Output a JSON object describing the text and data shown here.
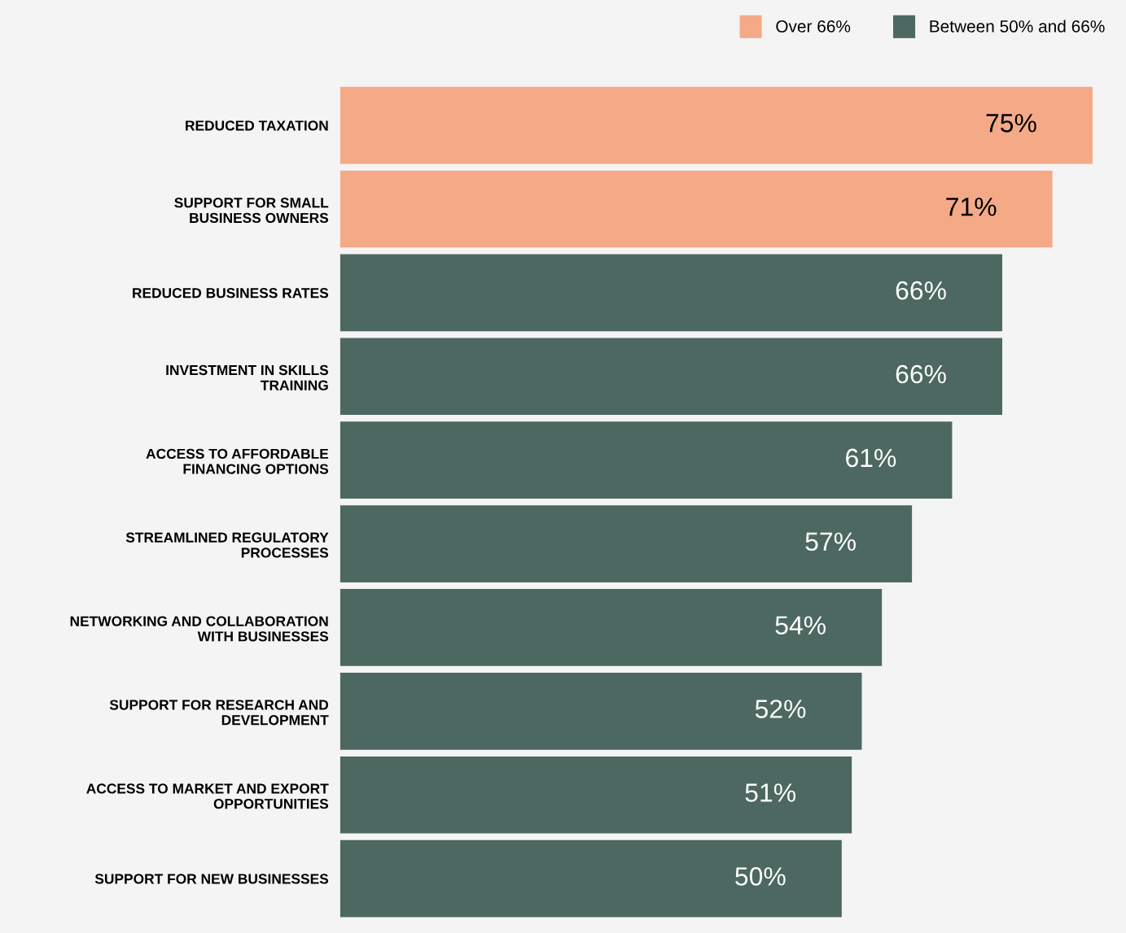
{
  "chart_data": {
    "type": "bar",
    "orientation": "horizontal",
    "legend": "top right",
    "grid": false,
    "categories": [
      "REDUCED TAXATION",
      "SUPPORT FOR SMALL\nBUSINESS OWNERS",
      "REDUCED BUSINESS RATES",
      "INVESTMENT IN SKILLS\nTRAINING",
      "ACCESS TO AFFORDABLE\nFINANCING OPTIONS",
      "STREAMLINED REGULATORY\nPROCESSES",
      "NETWORKING AND COLLABORATION\nWITH BUSINESSES",
      "SUPPORT FOR RESEARCH AND\nDEVELOPMENT",
      "ACCESS TO MARKET AND EXPORT\nOPPORTUNITIES",
      "SUPPORT FOR NEW BUSINESSES"
    ],
    "series": [
      {
        "name": "Over 66%",
        "color": "#f5aa87",
        "values": [
          75,
          71,
          null,
          null,
          null,
          null,
          null,
          null,
          null,
          null
        ],
        "value_labels": [
          "75%",
          "71%",
          null,
          null,
          null,
          null,
          null,
          null,
          null,
          null
        ]
      },
      {
        "name": "Between 50% and 66%",
        "color": "#4d6860",
        "values": [
          null,
          null,
          66,
          66,
          61,
          57,
          54,
          52,
          51,
          50
        ],
        "value_labels": [
          null,
          null,
          "66%",
          "66%",
          "61%",
          "57%",
          "54%",
          "52%",
          "51%",
          "50%"
        ]
      }
    ]
  }
}
